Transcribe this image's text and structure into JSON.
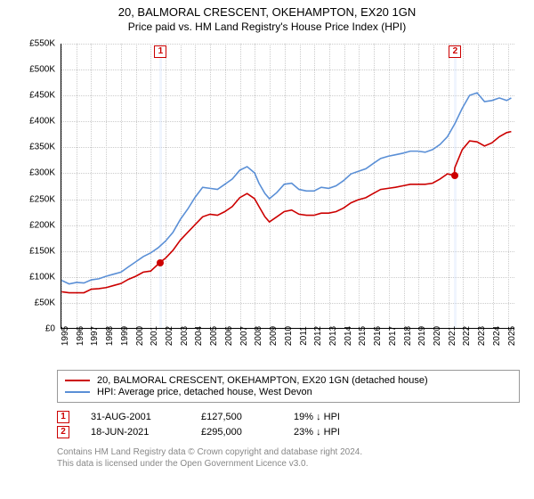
{
  "title": "20, BALMORAL CRESCENT, OKEHAMPTON, EX20 1GN",
  "subtitle": "Price paid vs. HM Land Registry's House Price Index (HPI)",
  "chart": {
    "type": "line",
    "background_color": "#ffffff",
    "grid_color": "#cccccc",
    "title_fontsize": 13,
    "label_fontsize": 10,
    "ylim": [
      0,
      550000
    ],
    "ytick_step": 50000,
    "y_ticks": [
      "£0",
      "£50K",
      "£100K",
      "£150K",
      "£200K",
      "£250K",
      "£300K",
      "£350K",
      "£400K",
      "£450K",
      "£500K",
      "£550K"
    ],
    "xlim": [
      1995,
      2025.5
    ],
    "x_ticks": [
      1995,
      1996,
      1997,
      1998,
      1999,
      2000,
      2001,
      2002,
      2003,
      2004,
      2005,
      2006,
      2007,
      2008,
      2009,
      2010,
      2011,
      2012,
      2013,
      2014,
      2015,
      2016,
      2017,
      2018,
      2019,
      2020,
      2021,
      2022,
      2023,
      2024,
      2025
    ],
    "series": [
      {
        "name": "price_paid",
        "label": "20, BALMORAL CRESCENT, OKEHAMPTON, EX20 1GN (detached house)",
        "color": "#cc0000",
        "line_width": 1.6,
        "data": [
          [
            1995,
            70000
          ],
          [
            1995.5,
            68000
          ],
          [
            1996,
            68000
          ],
          [
            1996.5,
            68000
          ],
          [
            1997,
            75000
          ],
          [
            1997.5,
            76000
          ],
          [
            1998,
            78000
          ],
          [
            1998.5,
            82000
          ],
          [
            1999,
            86000
          ],
          [
            1999.5,
            94000
          ],
          [
            2000,
            100000
          ],
          [
            2000.5,
            108000
          ],
          [
            2001,
            110000
          ],
          [
            2001.66,
            127500
          ],
          [
            2002,
            135000
          ],
          [
            2002.5,
            150000
          ],
          [
            2003,
            170000
          ],
          [
            2003.5,
            185000
          ],
          [
            2004,
            200000
          ],
          [
            2004.5,
            215000
          ],
          [
            2005,
            220000
          ],
          [
            2005.5,
            218000
          ],
          [
            2006,
            225000
          ],
          [
            2006.5,
            235000
          ],
          [
            2007,
            252000
          ],
          [
            2007.5,
            260000
          ],
          [
            2008,
            250000
          ],
          [
            2008.3,
            235000
          ],
          [
            2008.7,
            215000
          ],
          [
            2009,
            205000
          ],
          [
            2009.5,
            215000
          ],
          [
            2010,
            225000
          ],
          [
            2010.5,
            228000
          ],
          [
            2011,
            220000
          ],
          [
            2011.5,
            218000
          ],
          [
            2012,
            218000
          ],
          [
            2012.5,
            222000
          ],
          [
            2013,
            222000
          ],
          [
            2013.5,
            225000
          ],
          [
            2014,
            232000
          ],
          [
            2014.5,
            242000
          ],
          [
            2015,
            248000
          ],
          [
            2015.5,
            252000
          ],
          [
            2016,
            260000
          ],
          [
            2016.5,
            268000
          ],
          [
            2017,
            270000
          ],
          [
            2017.5,
            272000
          ],
          [
            2018,
            275000
          ],
          [
            2018.5,
            278000
          ],
          [
            2019,
            278000
          ],
          [
            2019.5,
            278000
          ],
          [
            2020,
            280000
          ],
          [
            2020.5,
            288000
          ],
          [
            2021,
            298000
          ],
          [
            2021.46,
            295000
          ],
          [
            2021.5,
            310000
          ],
          [
            2022,
            345000
          ],
          [
            2022.5,
            362000
          ],
          [
            2023,
            360000
          ],
          [
            2023.5,
            352000
          ],
          [
            2024,
            358000
          ],
          [
            2024.5,
            370000
          ],
          [
            2025,
            378000
          ],
          [
            2025.3,
            380000
          ]
        ]
      },
      {
        "name": "hpi",
        "label": "HPI: Average price, detached house, West Devon",
        "color": "#5a8fd6",
        "line_width": 1.6,
        "data": [
          [
            1995,
            92000
          ],
          [
            1995.5,
            85000
          ],
          [
            1996,
            88000
          ],
          [
            1996.5,
            87000
          ],
          [
            1997,
            93000
          ],
          [
            1997.5,
            95000
          ],
          [
            1998,
            100000
          ],
          [
            1998.5,
            104000
          ],
          [
            1999,
            108000
          ],
          [
            1999.5,
            118000
          ],
          [
            2000,
            128000
          ],
          [
            2000.5,
            138000
          ],
          [
            2001,
            145000
          ],
          [
            2001.5,
            155000
          ],
          [
            2002,
            168000
          ],
          [
            2002.5,
            185000
          ],
          [
            2003,
            210000
          ],
          [
            2003.5,
            230000
          ],
          [
            2004,
            253000
          ],
          [
            2004.5,
            272000
          ],
          [
            2005,
            270000
          ],
          [
            2005.5,
            268000
          ],
          [
            2006,
            278000
          ],
          [
            2006.5,
            288000
          ],
          [
            2007,
            305000
          ],
          [
            2007.5,
            312000
          ],
          [
            2008,
            300000
          ],
          [
            2008.3,
            280000
          ],
          [
            2008.7,
            260000
          ],
          [
            2009,
            250000
          ],
          [
            2009.5,
            262000
          ],
          [
            2010,
            278000
          ],
          [
            2010.5,
            280000
          ],
          [
            2011,
            268000
          ],
          [
            2011.5,
            265000
          ],
          [
            2012,
            265000
          ],
          [
            2012.5,
            272000
          ],
          [
            2013,
            270000
          ],
          [
            2013.5,
            275000
          ],
          [
            2014,
            285000
          ],
          [
            2014.5,
            298000
          ],
          [
            2015,
            303000
          ],
          [
            2015.5,
            308000
          ],
          [
            2016,
            318000
          ],
          [
            2016.5,
            328000
          ],
          [
            2017,
            332000
          ],
          [
            2017.5,
            335000
          ],
          [
            2018,
            338000
          ],
          [
            2018.5,
            342000
          ],
          [
            2019,
            342000
          ],
          [
            2019.5,
            340000
          ],
          [
            2020,
            345000
          ],
          [
            2020.5,
            355000
          ],
          [
            2021,
            370000
          ],
          [
            2021.5,
            395000
          ],
          [
            2022,
            425000
          ],
          [
            2022.5,
            450000
          ],
          [
            2023,
            455000
          ],
          [
            2023.5,
            438000
          ],
          [
            2024,
            440000
          ],
          [
            2024.5,
            445000
          ],
          [
            2025,
            440000
          ],
          [
            2025.3,
            445000
          ]
        ]
      }
    ],
    "markers": [
      {
        "n": "1",
        "x": 2001.66,
        "y": 127500,
        "band_start": 2001.55,
        "band_end": 2001.77
      },
      {
        "n": "2",
        "x": 2021.46,
        "y": 295000,
        "band_start": 2021.35,
        "band_end": 2021.57
      }
    ]
  },
  "legend": {
    "items": [
      {
        "color": "#cc0000",
        "label": "20, BALMORAL CRESCENT, OKEHAMPTON, EX20 1GN (detached house)"
      },
      {
        "color": "#5a8fd6",
        "label": "HPI: Average price, detached house, West Devon"
      }
    ]
  },
  "sales": [
    {
      "n": "1",
      "date": "31-AUG-2001",
      "price": "£127,500",
      "diff": "19% ↓ HPI"
    },
    {
      "n": "2",
      "date": "18-JUN-2021",
      "price": "£295,000",
      "diff": "23% ↓ HPI"
    }
  ],
  "footer_line1": "Contains HM Land Registry data © Crown copyright and database right 2024.",
  "footer_line2": "This data is licensed under the Open Government Licence v3.0."
}
